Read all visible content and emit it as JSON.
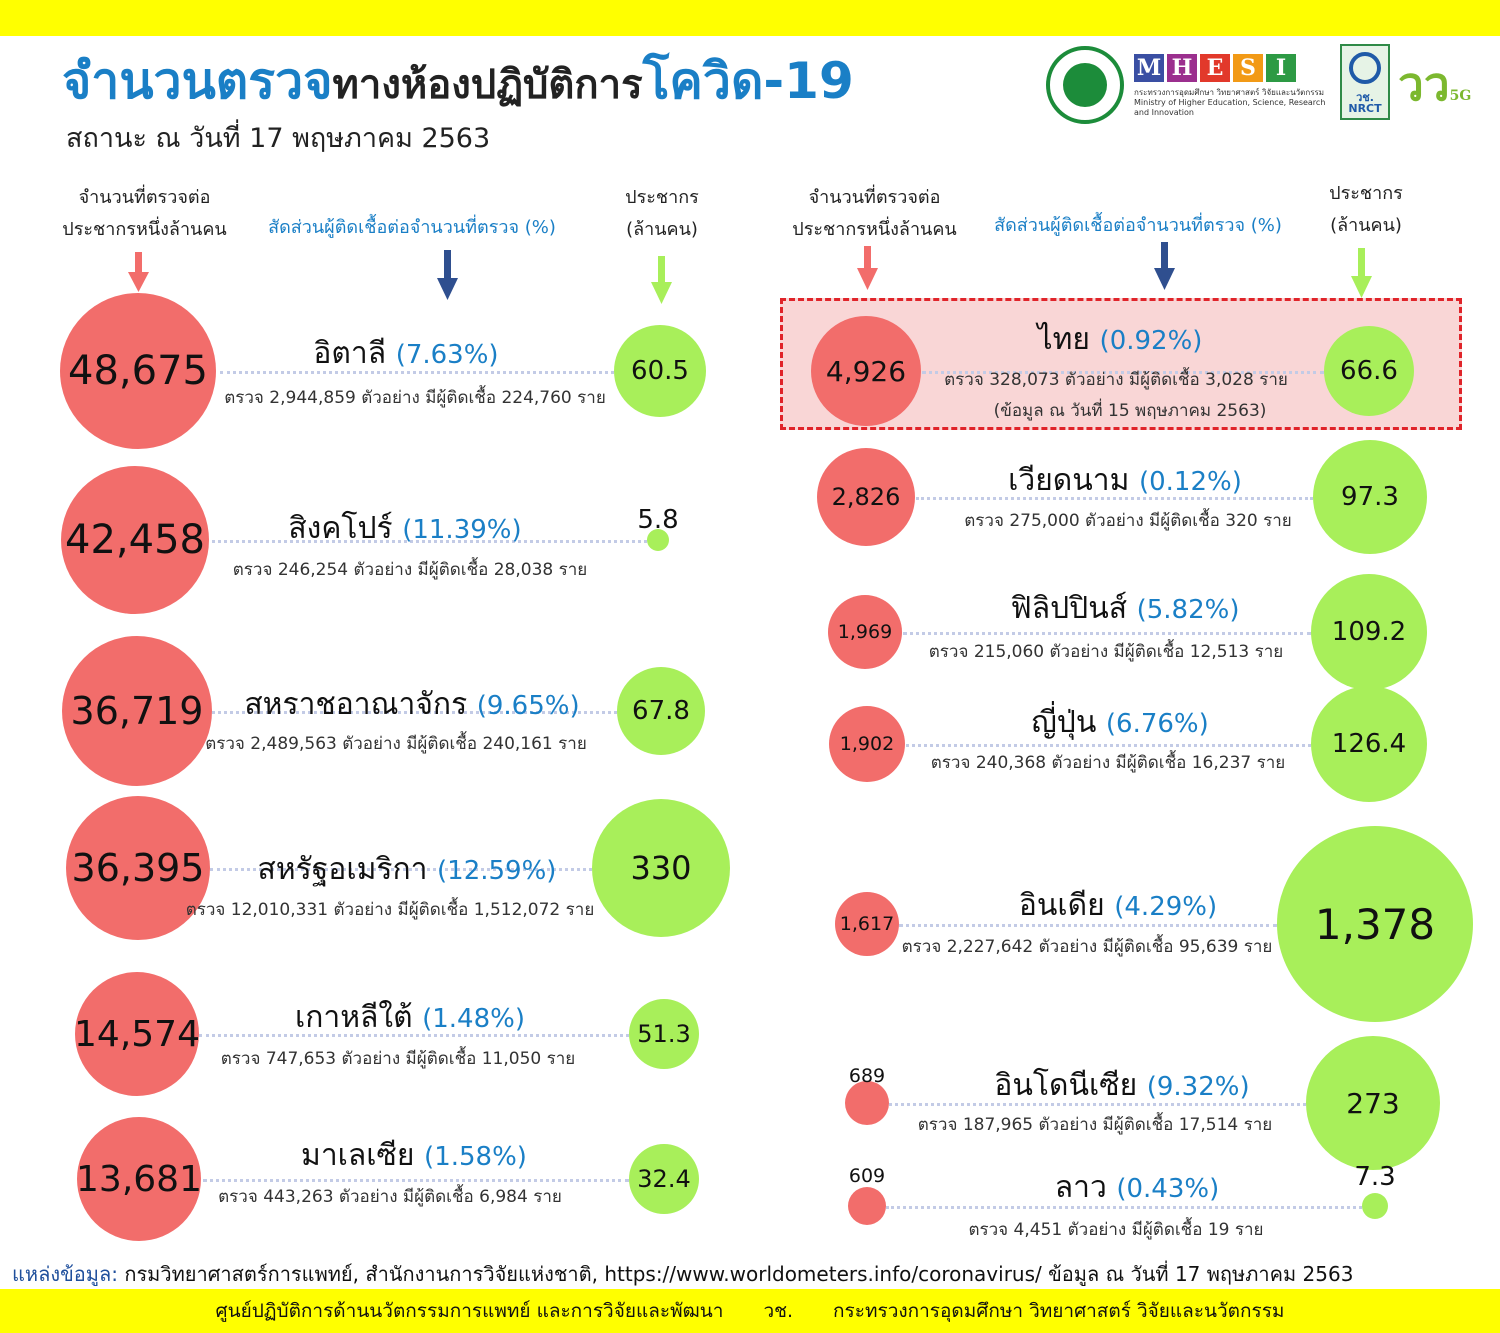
{
  "header": {
    "title_part1": "จำนวนตรวจ",
    "title_part2": "ทางห้องปฏิบัติการ",
    "title_part3": "โควิด-19",
    "subtitle": "สถานะ ณ วันที่ 17 พฤษภาคม 2563"
  },
  "logos": {
    "mhesi_letters": [
      "M",
      "H",
      "E",
      "S",
      "I"
    ],
    "mhesi_colors": [
      "#3a4fa3",
      "#9b2f8e",
      "#e2392b",
      "#f29a16",
      "#2d9a44"
    ],
    "mhesi_caption": "กระทรวงการอุดมศึกษา วิทยาศาสตร์ วิจัยและนวัตกรรม",
    "mhesi_caption_en": "Ministry of Higher Education, Science, Research and Innovation",
    "nrct_top": "วช.",
    "nrct_bottom": "NRCT",
    "v5g_text": "วว",
    "v5g_small": "5G"
  },
  "column_headers": {
    "per_million_line1": "จำนวนที่ตรวจต่อ",
    "per_million_line2": "ประชากรหนึ่งล้านคน",
    "ratio": "สัดส่วนผู้ติดเชื้อต่อจำนวนที่ตรวจ (%)",
    "population_line1": "ประชากร",
    "population_line2": "(ล้านคน)"
  },
  "colors": {
    "tests_circle": "#f26d6b",
    "population_circle": "#a8ef5a",
    "accent_blue": "#1a7fc6",
    "highlight_border": "#e0242a",
    "highlight_fill": "#f9d6d6"
  },
  "chart_data": {
    "type": "bubble",
    "series": [
      {
        "name": "จำนวนที่ตรวจต่อประชากรหนึ่งล้านคน",
        "color": "#f26d6b"
      },
      {
        "name": "ประชากร (ล้านคน)",
        "color": "#a8ef5a"
      }
    ],
    "left_countries": [
      {
        "country": "อิตาลี",
        "ratio": "(7.63%)",
        "tests_per_million": "48,675",
        "population": "60.5",
        "detail": "ตรวจ 2,944,859 ตัวอย่าง มีผู้ติดเชื้อ 224,760 ราย"
      },
      {
        "country": "สิงคโปร์",
        "ratio": "(11.39%)",
        "tests_per_million": "42,458",
        "population": "5.8",
        "detail": "ตรวจ 246,254 ตัวอย่าง มีผู้ติดเชื้อ 28,038 ราย"
      },
      {
        "country": "สหราชอาณาจักร",
        "ratio": "(9.65%)",
        "tests_per_million": "36,719",
        "population": "67.8",
        "detail": "ตรวจ 2,489,563 ตัวอย่าง มีผู้ติดเชื้อ 240,161 ราย"
      },
      {
        "country": "สหรัฐอเมริกา",
        "ratio": "(12.59%)",
        "tests_per_million": "36,395",
        "population": "330",
        "detail": "ตรวจ 12,010,331 ตัวอย่าง มีผู้ติดเชื้อ 1,512,072 ราย"
      },
      {
        "country": "เกาหลีใต้",
        "ratio": "(1.48%)",
        "tests_per_million": "14,574",
        "population": "51.3",
        "detail": "ตรวจ 747,653 ตัวอย่าง มีผู้ติดเชื้อ 11,050 ราย"
      },
      {
        "country": "มาเลเซีย",
        "ratio": "(1.58%)",
        "tests_per_million": "13,681",
        "population": "32.4",
        "detail": "ตรวจ 443,263 ตัวอย่าง มีผู้ติดเชื้อ 6,984 ราย"
      }
    ],
    "right_countries": [
      {
        "country": "ไทย",
        "ratio": "(0.92%)",
        "tests_per_million": "4,926",
        "population": "66.6",
        "detail": "ตรวจ 328,073 ตัวอย่าง มีผู้ติดเชื้อ 3,028 ราย",
        "note": "(ข้อมูล ณ วันที่ 15 พฤษภาคม 2563)",
        "highlighted": true
      },
      {
        "country": "เวียดนาม",
        "ratio": "(0.12%)",
        "tests_per_million": "2,826",
        "population": "97.3",
        "detail": "ตรวจ 275,000 ตัวอย่าง มีผู้ติดเชื้อ 320 ราย"
      },
      {
        "country": "ฟิลิปปินส์",
        "ratio": "(5.82%)",
        "tests_per_million": "1,969",
        "population": "109.2",
        "detail": "ตรวจ 215,060 ตัวอย่าง มีผู้ติดเชื้อ 12,513 ราย"
      },
      {
        "country": "ญี่ปุ่น",
        "ratio": "(6.76%)",
        "tests_per_million": "1,902",
        "population": "126.4",
        "detail": "ตรวจ 240,368 ตัวอย่าง มีผู้ติดเชื้อ 16,237 ราย"
      },
      {
        "country": "อินเดีย",
        "ratio": "(4.29%)",
        "tests_per_million": "1,617",
        "population": "1,378",
        "detail": "ตรวจ 2,227,642 ตัวอย่าง มีผู้ติดเชื้อ 95,639 ราย"
      },
      {
        "country": "อินโดนีเซีย",
        "ratio": "(9.32%)",
        "tests_per_million": "689",
        "population": "273",
        "detail": "ตรวจ 187,965 ตัวอย่าง มีผู้ติดเชื้อ 17,514 ราย"
      },
      {
        "country": "ลาว",
        "ratio": "(0.43%)",
        "tests_per_million": "609",
        "population": "7.3",
        "detail": "ตรวจ 4,451 ตัวอย่าง มีผู้ติดเชื้อ 19 ราย"
      }
    ]
  },
  "source": {
    "label": "แหล่งข้อมูล:",
    "text": "กรมวิทยาศาสตร์การแพทย์, สำนักงานการวิจัยแห่งชาติ, https://www.worldometers.info/coronavirus/ ข้อมูล ณ วันที่ 17 พฤษภาคม 2563"
  },
  "footer": {
    "part1": "ศูนย์ปฏิบัติการด้านนวัตกรรมการแพทย์ และการวิจัยและพัฒนา",
    "part2": "วช.",
    "part3": "กระทรวงการอุดมศึกษา วิทยาศาสตร์ วิจัยและนวัตกรรม"
  }
}
